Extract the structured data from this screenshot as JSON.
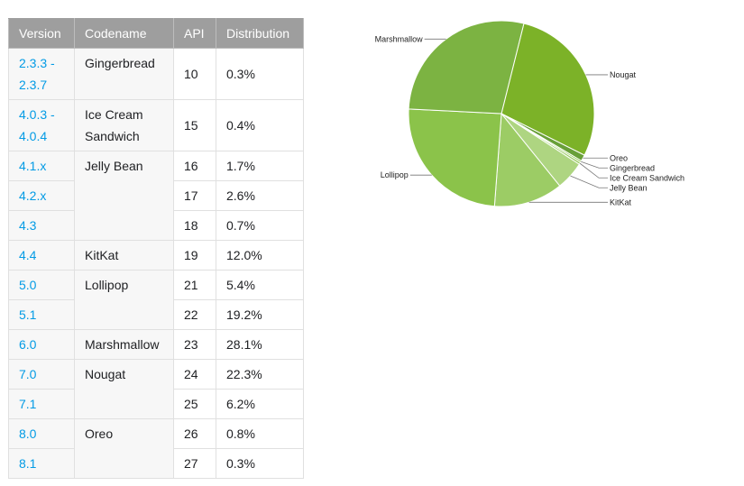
{
  "table": {
    "headers": [
      "Version",
      "Codename",
      "API",
      "Distribution"
    ],
    "rows": [
      {
        "version": "2.3.3 -\n2.3.7",
        "codename": "Gingerbread",
        "codename_span": 1,
        "api": "10",
        "distribution": "0.3%"
      },
      {
        "version": "4.0.3 -\n4.0.4",
        "codename": "Ice Cream\nSandwich",
        "codename_span": 1,
        "api": "15",
        "distribution": "0.4%"
      },
      {
        "version": "4.1.x",
        "codename": "Jelly Bean",
        "codename_span": 3,
        "api": "16",
        "distribution": "1.7%"
      },
      {
        "version": "4.2.x",
        "codename": null,
        "codename_span": 0,
        "api": "17",
        "distribution": "2.6%"
      },
      {
        "version": "4.3",
        "codename": null,
        "codename_span": 0,
        "api": "18",
        "distribution": "0.7%"
      },
      {
        "version": "4.4",
        "codename": "KitKat",
        "codename_span": 1,
        "api": "19",
        "distribution": "12.0%"
      },
      {
        "version": "5.0",
        "codename": "Lollipop",
        "codename_span": 2,
        "api": "21",
        "distribution": "5.4%"
      },
      {
        "version": "5.1",
        "codename": null,
        "codename_span": 0,
        "api": "22",
        "distribution": "19.2%"
      },
      {
        "version": "6.0",
        "codename": "Marshmallow",
        "codename_span": 1,
        "api": "23",
        "distribution": "28.1%"
      },
      {
        "version": "7.0",
        "codename": "Nougat",
        "codename_span": 2,
        "api": "24",
        "distribution": "22.3%"
      },
      {
        "version": "7.1",
        "codename": null,
        "codename_span": 0,
        "api": "25",
        "distribution": "6.2%"
      },
      {
        "version": "8.0",
        "codename": "Oreo",
        "codename_span": 2,
        "api": "26",
        "distribution": "0.8%"
      },
      {
        "version": "8.1",
        "codename": null,
        "codename_span": 0,
        "api": "27",
        "distribution": "0.3%"
      }
    ]
  },
  "chart_data": {
    "type": "pie",
    "categories": [
      "Nougat",
      "Oreo",
      "Gingerbread",
      "Ice Cream Sandwich",
      "Jelly Bean",
      "KitKat",
      "Lollipop",
      "Marshmallow"
    ],
    "values": [
      28.5,
      1.1,
      0.3,
      0.4,
      5.0,
      12.0,
      24.6,
      28.1
    ],
    "colors": [
      "#7cb228",
      "#689f38",
      "#8bc34a",
      "#9ccc65",
      "#aed581",
      "#9ccc65",
      "#8bc34a",
      "#7cb342"
    ],
    "label_sides": [
      "right",
      "right",
      "right",
      "right",
      "right",
      "right",
      "left",
      "left"
    ]
  }
}
